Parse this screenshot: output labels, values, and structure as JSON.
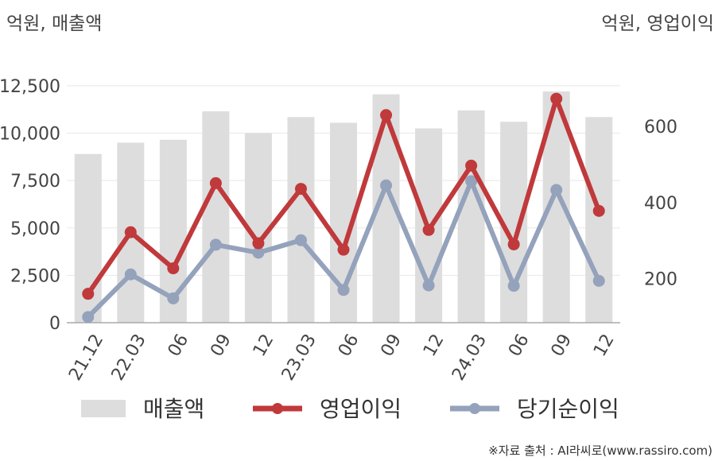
{
  "chart_data": {
    "type": "bar+line",
    "left_unit": "억원, 매출액",
    "right_unit": "억원, 영업이익",
    "categories": [
      "21.12",
      "22.03",
      "06",
      "09",
      "12",
      "23.03",
      "06",
      "09",
      "12",
      "24.03",
      "06",
      "09",
      "12"
    ],
    "left_axis": {
      "ticks": [
        0,
        2500,
        5000,
        7500,
        10000,
        12500
      ],
      "tick_labels": [
        "0",
        "2,500",
        "5,000",
        "7,500",
        "10,000",
        "12,500"
      ],
      "ylim": [
        0,
        13000
      ]
    },
    "right_axis": {
      "ticks": [
        200,
        400,
        600
      ],
      "tick_labels": [
        "200",
        "400",
        "600"
      ],
      "ylim": [
        84,
        732
      ]
    },
    "series": [
      {
        "name": "매출액",
        "type": "bar",
        "axis": "left",
        "color": "#dddddd",
        "values": [
          8900,
          9500,
          9650,
          11150,
          10000,
          10850,
          10550,
          12050,
          10250,
          11200,
          10600,
          12200,
          10850
        ]
      },
      {
        "name": "영업이익",
        "type": "line",
        "axis": "right",
        "color": "#c0393b",
        "values": [
          160,
          322,
          227,
          451,
          293,
          436,
          276,
          630,
          328,
          497,
          290,
          673,
          378
        ]
      },
      {
        "name": "당기순이익",
        "type": "line",
        "axis": "right",
        "color": "#94a2bb",
        "values": [
          99,
          211,
          148,
          289,
          268,
          301,
          170,
          445,
          182,
          456,
          181,
          433,
          194
        ]
      }
    ],
    "grid": true,
    "legend_position": "bottom"
  },
  "source": "※자료 출처 : AI라씨로(www.rassiro.com)"
}
